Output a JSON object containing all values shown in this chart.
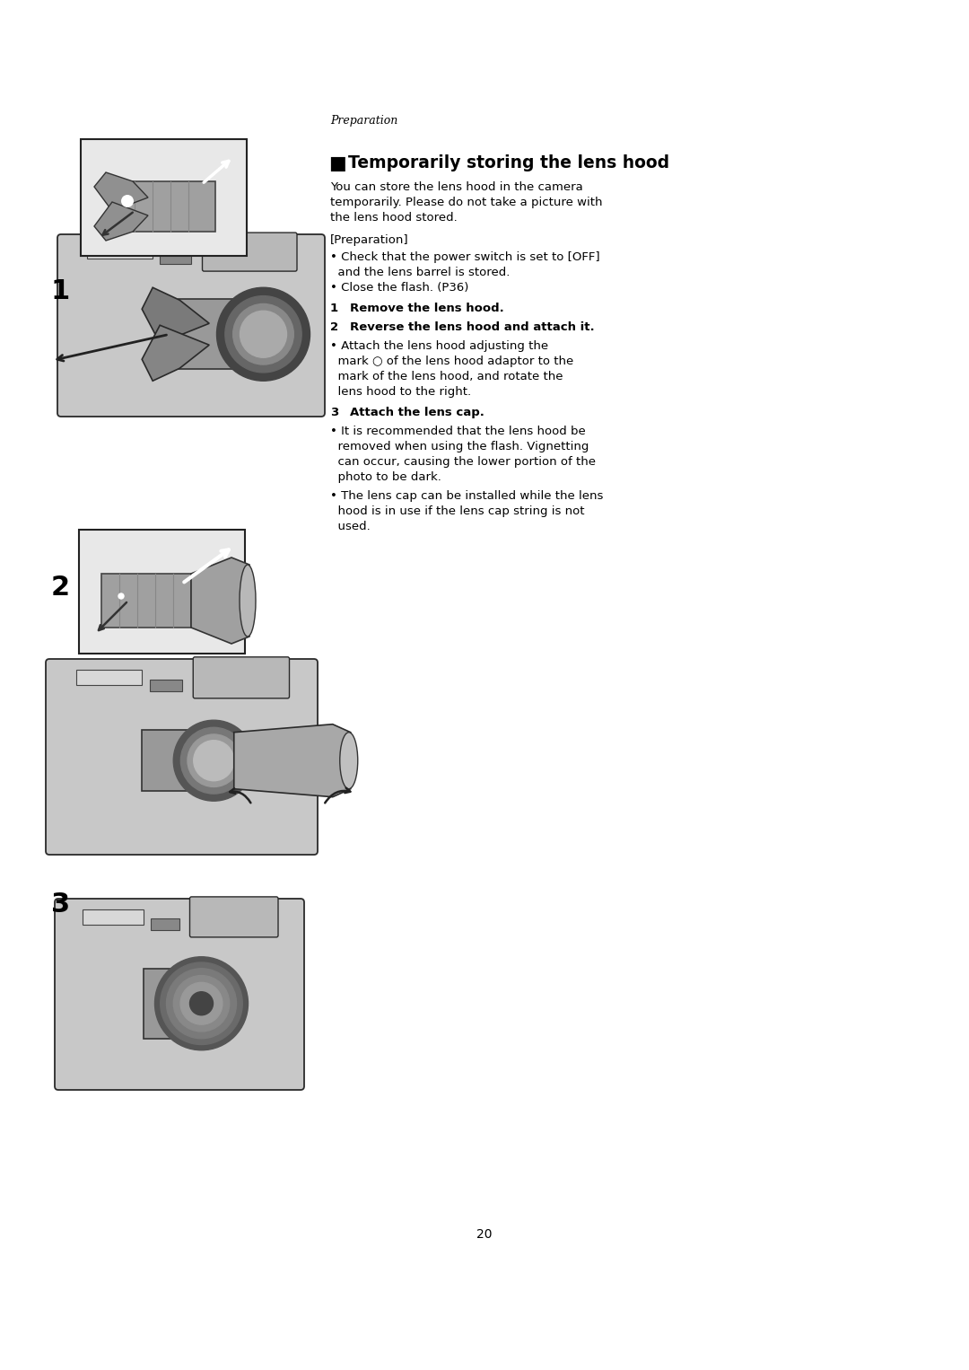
{
  "background_color": "#ffffff",
  "page_number": "20",
  "header_italic": "Preparation",
  "section_title_square": "■",
  "section_title": "Temporarily storing the lens hood",
  "intro_line1": "You can store the lens hood in the camera",
  "intro_line2": "temporarily. Please do not take a picture with",
  "intro_line3": "the lens hood stored.",
  "prep_header": "[Preparation]",
  "prep_b1_line1": "• Check that the power switch is set to [OFF]",
  "prep_b1_line2": "  and the lens barrel is stored.",
  "prep_b2": "• Close the flash. (P36)",
  "step1_num": "1",
  "step1_text": "Remove the lens hood.",
  "step2_num": "2",
  "step2_text": "Reverse the lens hood and attach it.",
  "step2_b_line1": "• Attach the lens hood adjusting the",
  "step2_b_line2": "  mark ○ of the lens hood adaptor to the",
  "step2_b_line3": "  mark of the lens hood, and rotate the",
  "step2_b_line4": "  lens hood to the right.",
  "step3_num": "3",
  "step3_text": "Attach the lens cap.",
  "step3_b1_line1": "• It is recommended that the lens hood be",
  "step3_b1_line2": "  removed when using the flash. Vignetting",
  "step3_b1_line3": "  can occur, causing the lower portion of the",
  "step3_b1_line4": "  photo to be dark.",
  "step3_b2_line1": "• The lens cap can be installed while the lens",
  "step3_b2_line2": "  hood is in use if the lens cap string is not",
  "step3_b2_line3": "  used.",
  "side_num_1": "1",
  "side_num_2": "2",
  "side_num_3": "3",
  "text_color": "#000000",
  "fig_width": 10.8,
  "fig_height": 15.26
}
